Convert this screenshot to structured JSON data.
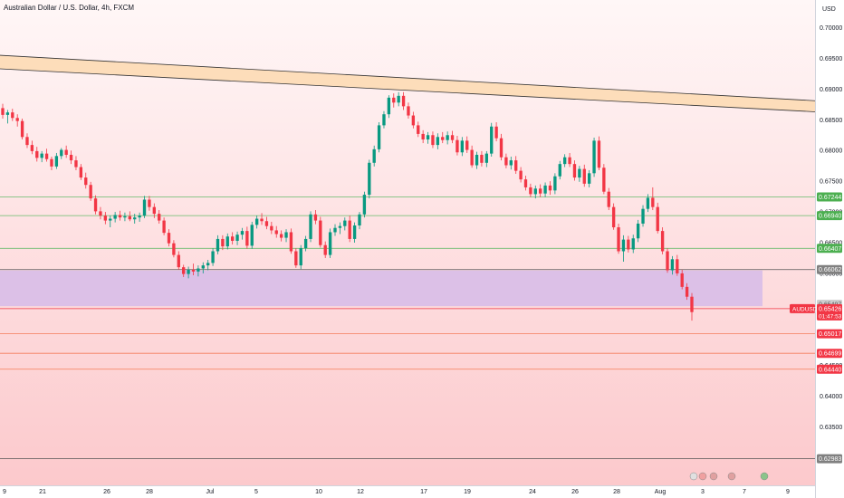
{
  "header": {
    "title": "Australian Dollar / U.S. Dollar, 4h, FXCM"
  },
  "chart_data": {
    "type": "candlestick",
    "currency_label": "USD",
    "ylim": [
      0.6255,
      0.7045
    ],
    "y_ticks": [
      "0.70000",
      "0.69500",
      "0.69000",
      "0.68500",
      "0.68000",
      "0.67500",
      "0.67000",
      "0.66500",
      "0.66000",
      "0.65500",
      "0.65000",
      "0.64500",
      "0.64000",
      "0.63500",
      "0.63000"
    ],
    "x_ticks": [
      "9",
      "21",
      "26",
      "28",
      "Jul",
      "5",
      "10",
      "12",
      "17",
      "19",
      "24",
      "26",
      "28",
      "Aug",
      "3",
      "7",
      "9"
    ],
    "colors": {
      "up": "#089981",
      "down": "#f23645",
      "zone": "#d8bde8",
      "channel": "#fdd9b0",
      "hline_green": "#66bb6a",
      "hline_red": "#f57c5a"
    },
    "symbol": {
      "name": "AUDUSD",
      "price": "0.65426",
      "countdown": "01:47:53"
    },
    "levels": [
      {
        "label": "0.67244",
        "value": 0.67244,
        "color": "#4caf50"
      },
      {
        "label": "0.66940",
        "value": 0.6694,
        "color": "#4caf50"
      },
      {
        "label": "0.66407",
        "value": 0.66407,
        "color": "#4caf50"
      },
      {
        "label": "0.66062",
        "value": 0.66062,
        "color": "#808080"
      },
      {
        "label": "0.65497",
        "value": 0.65497,
        "color": "#cfcfcf"
      },
      {
        "label": "0.65017",
        "value": 0.65017,
        "color": "#f23645"
      },
      {
        "label": "0.64699",
        "value": 0.64699,
        "color": "#f23645"
      },
      {
        "label": "0.64440",
        "value": 0.6444,
        "color": "#f23645"
      },
      {
        "label": "0.62983",
        "value": 0.62983,
        "color": "#808080"
      }
    ],
    "zone": {
      "top": 0.66048,
      "bottom": 0.65466
    },
    "channel": {
      "upper_start": 0.6955,
      "upper_end": 0.6881,
      "lower_start": 0.6933,
      "lower_end": 0.6863
    },
    "candles": [
      [
        0.6869,
        0.6876,
        0.6852,
        0.6858
      ],
      [
        0.6858,
        0.6866,
        0.6844,
        0.6862
      ],
      [
        0.6862,
        0.6868,
        0.6848,
        0.6853
      ],
      [
        0.6853,
        0.6859,
        0.6839,
        0.6848
      ],
      [
        0.6848,
        0.6852,
        0.6818,
        0.6822
      ],
      [
        0.6822,
        0.6828,
        0.6804,
        0.6809
      ],
      [
        0.6809,
        0.6816,
        0.6794,
        0.6799
      ],
      [
        0.6799,
        0.6806,
        0.6782,
        0.6788
      ],
      [
        0.6788,
        0.6799,
        0.6781,
        0.6795
      ],
      [
        0.6795,
        0.6803,
        0.6782,
        0.6786
      ],
      [
        0.6786,
        0.679,
        0.6768,
        0.6774
      ],
      [
        0.6774,
        0.6796,
        0.677,
        0.6791
      ],
      [
        0.6791,
        0.6804,
        0.6786,
        0.6801
      ],
      [
        0.6801,
        0.6808,
        0.6788,
        0.6793
      ],
      [
        0.6793,
        0.68,
        0.6778,
        0.6784
      ],
      [
        0.6784,
        0.6791,
        0.6768,
        0.6773
      ],
      [
        0.6773,
        0.6778,
        0.6752,
        0.6756
      ],
      [
        0.6756,
        0.6764,
        0.6738,
        0.6744
      ],
      [
        0.6744,
        0.6749,
        0.6718,
        0.6722
      ],
      [
        0.6722,
        0.6727,
        0.6696,
        0.6701
      ],
      [
        0.6701,
        0.6708,
        0.6688,
        0.6694
      ],
      [
        0.6694,
        0.67,
        0.668,
        0.6686
      ],
      [
        0.6686,
        0.6694,
        0.6675,
        0.6689
      ],
      [
        0.6689,
        0.67,
        0.6683,
        0.6695
      ],
      [
        0.6695,
        0.6702,
        0.6686,
        0.6691
      ],
      [
        0.6691,
        0.6699,
        0.6685,
        0.6693
      ],
      [
        0.6693,
        0.6701,
        0.6685,
        0.6688
      ],
      [
        0.6688,
        0.6697,
        0.6681,
        0.6691
      ],
      [
        0.6691,
        0.6699,
        0.6684,
        0.6694
      ],
      [
        0.6694,
        0.6726,
        0.669,
        0.672
      ],
      [
        0.672,
        0.6726,
        0.6702,
        0.6708
      ],
      [
        0.6708,
        0.6714,
        0.669,
        0.6697
      ],
      [
        0.6697,
        0.6703,
        0.6681,
        0.6686
      ],
      [
        0.6686,
        0.6691,
        0.6662,
        0.6666
      ],
      [
        0.6666,
        0.6672,
        0.6644,
        0.6649
      ],
      [
        0.6649,
        0.6654,
        0.6626,
        0.663
      ],
      [
        0.663,
        0.6636,
        0.6606,
        0.661
      ],
      [
        0.661,
        0.6614,
        0.6594,
        0.6599
      ],
      [
        0.6599,
        0.6611,
        0.6592,
        0.6606
      ],
      [
        0.6606,
        0.6616,
        0.6597,
        0.6603
      ],
      [
        0.6603,
        0.6613,
        0.6595,
        0.6608
      ],
      [
        0.6608,
        0.6618,
        0.66,
        0.6613
      ],
      [
        0.6613,
        0.6622,
        0.6605,
        0.6617
      ],
      [
        0.6617,
        0.6641,
        0.6612,
        0.6636
      ],
      [
        0.6636,
        0.6662,
        0.6631,
        0.6656
      ],
      [
        0.6656,
        0.6662,
        0.6638,
        0.6644
      ],
      [
        0.6644,
        0.6665,
        0.6639,
        0.666
      ],
      [
        0.666,
        0.6667,
        0.6647,
        0.6653
      ],
      [
        0.6653,
        0.6668,
        0.6646,
        0.6663
      ],
      [
        0.6663,
        0.6674,
        0.6655,
        0.6669
      ],
      [
        0.6669,
        0.6676,
        0.664,
        0.6645
      ],
      [
        0.6645,
        0.6684,
        0.664,
        0.6679
      ],
      [
        0.6679,
        0.6694,
        0.6673,
        0.6689
      ],
      [
        0.6689,
        0.6698,
        0.6679,
        0.6685
      ],
      [
        0.6685,
        0.6692,
        0.6672,
        0.6677
      ],
      [
        0.6677,
        0.6684,
        0.6664,
        0.667
      ],
      [
        0.667,
        0.6677,
        0.6658,
        0.6664
      ],
      [
        0.6664,
        0.667,
        0.6652,
        0.6658
      ],
      [
        0.6658,
        0.6672,
        0.6651,
        0.6667
      ],
      [
        0.6667,
        0.6673,
        0.6632,
        0.6636
      ],
      [
        0.6636,
        0.6641,
        0.6609,
        0.6613
      ],
      [
        0.6613,
        0.6646,
        0.6607,
        0.6641
      ],
      [
        0.6641,
        0.6661,
        0.6636,
        0.6656
      ],
      [
        0.6656,
        0.6701,
        0.6651,
        0.6696
      ],
      [
        0.6696,
        0.6703,
        0.668,
        0.6686
      ],
      [
        0.6686,
        0.6692,
        0.6642,
        0.6646
      ],
      [
        0.6646,
        0.6652,
        0.6625,
        0.663
      ],
      [
        0.663,
        0.6673,
        0.6625,
        0.6667
      ],
      [
        0.6667,
        0.668,
        0.6661,
        0.6674
      ],
      [
        0.6674,
        0.6683,
        0.6664,
        0.6677
      ],
      [
        0.6677,
        0.6691,
        0.667,
        0.6686
      ],
      [
        0.6686,
        0.6694,
        0.6651,
        0.6656
      ],
      [
        0.6656,
        0.6683,
        0.665,
        0.6678
      ],
      [
        0.6678,
        0.67,
        0.6672,
        0.6696
      ],
      [
        0.6696,
        0.6733,
        0.6691,
        0.6728
      ],
      [
        0.6728,
        0.6785,
        0.6722,
        0.678
      ],
      [
        0.678,
        0.6808,
        0.6774,
        0.6802
      ],
      [
        0.6802,
        0.6846,
        0.6797,
        0.6841
      ],
      [
        0.6841,
        0.6864,
        0.6836,
        0.6859
      ],
      [
        0.6859,
        0.689,
        0.6853,
        0.6886
      ],
      [
        0.6886,
        0.6893,
        0.687,
        0.6878
      ],
      [
        0.6878,
        0.6895,
        0.6872,
        0.6889
      ],
      [
        0.6889,
        0.6895,
        0.6866,
        0.6872
      ],
      [
        0.6872,
        0.6878,
        0.6852,
        0.6857
      ],
      [
        0.6857,
        0.6863,
        0.6836,
        0.6841
      ],
      [
        0.6841,
        0.6847,
        0.6822,
        0.6827
      ],
      [
        0.6827,
        0.6833,
        0.6812,
        0.6818
      ],
      [
        0.6818,
        0.683,
        0.6811,
        0.6825
      ],
      [
        0.6825,
        0.6831,
        0.6804,
        0.6809
      ],
      [
        0.6809,
        0.6828,
        0.6802,
        0.6822
      ],
      [
        0.6822,
        0.683,
        0.6812,
        0.6817
      ],
      [
        0.6817,
        0.6831,
        0.681,
        0.6825
      ],
      [
        0.6825,
        0.6832,
        0.6812,
        0.6817
      ],
      [
        0.6817,
        0.6824,
        0.6792,
        0.6797
      ],
      [
        0.6797,
        0.6822,
        0.6791,
        0.6816
      ],
      [
        0.6816,
        0.6823,
        0.6796,
        0.6801
      ],
      [
        0.6801,
        0.6808,
        0.6772,
        0.6776
      ],
      [
        0.6776,
        0.6798,
        0.677,
        0.6793
      ],
      [
        0.6793,
        0.6799,
        0.6774,
        0.678
      ],
      [
        0.678,
        0.6799,
        0.6773,
        0.6795
      ],
      [
        0.6795,
        0.6845,
        0.679,
        0.6839
      ],
      [
        0.6839,
        0.6846,
        0.6815,
        0.682
      ],
      [
        0.682,
        0.6827,
        0.6784,
        0.6789
      ],
      [
        0.6789,
        0.6795,
        0.6771,
        0.6776
      ],
      [
        0.6776,
        0.679,
        0.6769,
        0.6784
      ],
      [
        0.6784,
        0.6791,
        0.6762,
        0.6767
      ],
      [
        0.6767,
        0.6773,
        0.6748,
        0.6753
      ],
      [
        0.6753,
        0.6759,
        0.6735,
        0.674
      ],
      [
        0.674,
        0.6746,
        0.6724,
        0.6729
      ],
      [
        0.6729,
        0.6743,
        0.6722,
        0.6738
      ],
      [
        0.6738,
        0.6745,
        0.6724,
        0.673
      ],
      [
        0.673,
        0.6748,
        0.6724,
        0.6743
      ],
      [
        0.6743,
        0.675,
        0.6728,
        0.6735
      ],
      [
        0.6735,
        0.6763,
        0.6729,
        0.6758
      ],
      [
        0.6758,
        0.6783,
        0.6753,
        0.6778
      ],
      [
        0.6778,
        0.6794,
        0.6773,
        0.6789
      ],
      [
        0.6789,
        0.6796,
        0.6773,
        0.6778
      ],
      [
        0.6778,
        0.6784,
        0.6751,
        0.6756
      ],
      [
        0.6756,
        0.6775,
        0.6749,
        0.677
      ],
      [
        0.677,
        0.6777,
        0.6741,
        0.6746
      ],
      [
        0.6746,
        0.6768,
        0.674,
        0.6763
      ],
      [
        0.6763,
        0.6821,
        0.6757,
        0.6816
      ],
      [
        0.6816,
        0.6823,
        0.6768,
        0.6772
      ],
      [
        0.6772,
        0.6778,
        0.6729,
        0.6733
      ],
      [
        0.6733,
        0.6739,
        0.6703,
        0.6708
      ],
      [
        0.6708,
        0.6714,
        0.6671,
        0.6675
      ],
      [
        0.6675,
        0.6681,
        0.6632,
        0.6636
      ],
      [
        0.6636,
        0.6662,
        0.6619,
        0.6655
      ],
      [
        0.6655,
        0.6661,
        0.6634,
        0.6639
      ],
      [
        0.6639,
        0.6663,
        0.6633,
        0.6657
      ],
      [
        0.6657,
        0.6687,
        0.6651,
        0.6681
      ],
      [
        0.6681,
        0.6711,
        0.6676,
        0.6705
      ],
      [
        0.6705,
        0.6729,
        0.67,
        0.6723
      ],
      [
        0.6723,
        0.674,
        0.6703,
        0.6708
      ],
      [
        0.6708,
        0.6715,
        0.6665,
        0.6669
      ],
      [
        0.6669,
        0.6675,
        0.6631,
        0.6636
      ],
      [
        0.6636,
        0.6641,
        0.6601,
        0.6605
      ],
      [
        0.6605,
        0.6628,
        0.6598,
        0.6623
      ],
      [
        0.6623,
        0.663,
        0.6596,
        0.66
      ],
      [
        0.66,
        0.6606,
        0.6574,
        0.6578
      ],
      [
        0.6578,
        0.6584,
        0.6557,
        0.6562
      ],
      [
        0.6562,
        0.6568,
        0.6523,
        0.6537
      ]
    ]
  }
}
